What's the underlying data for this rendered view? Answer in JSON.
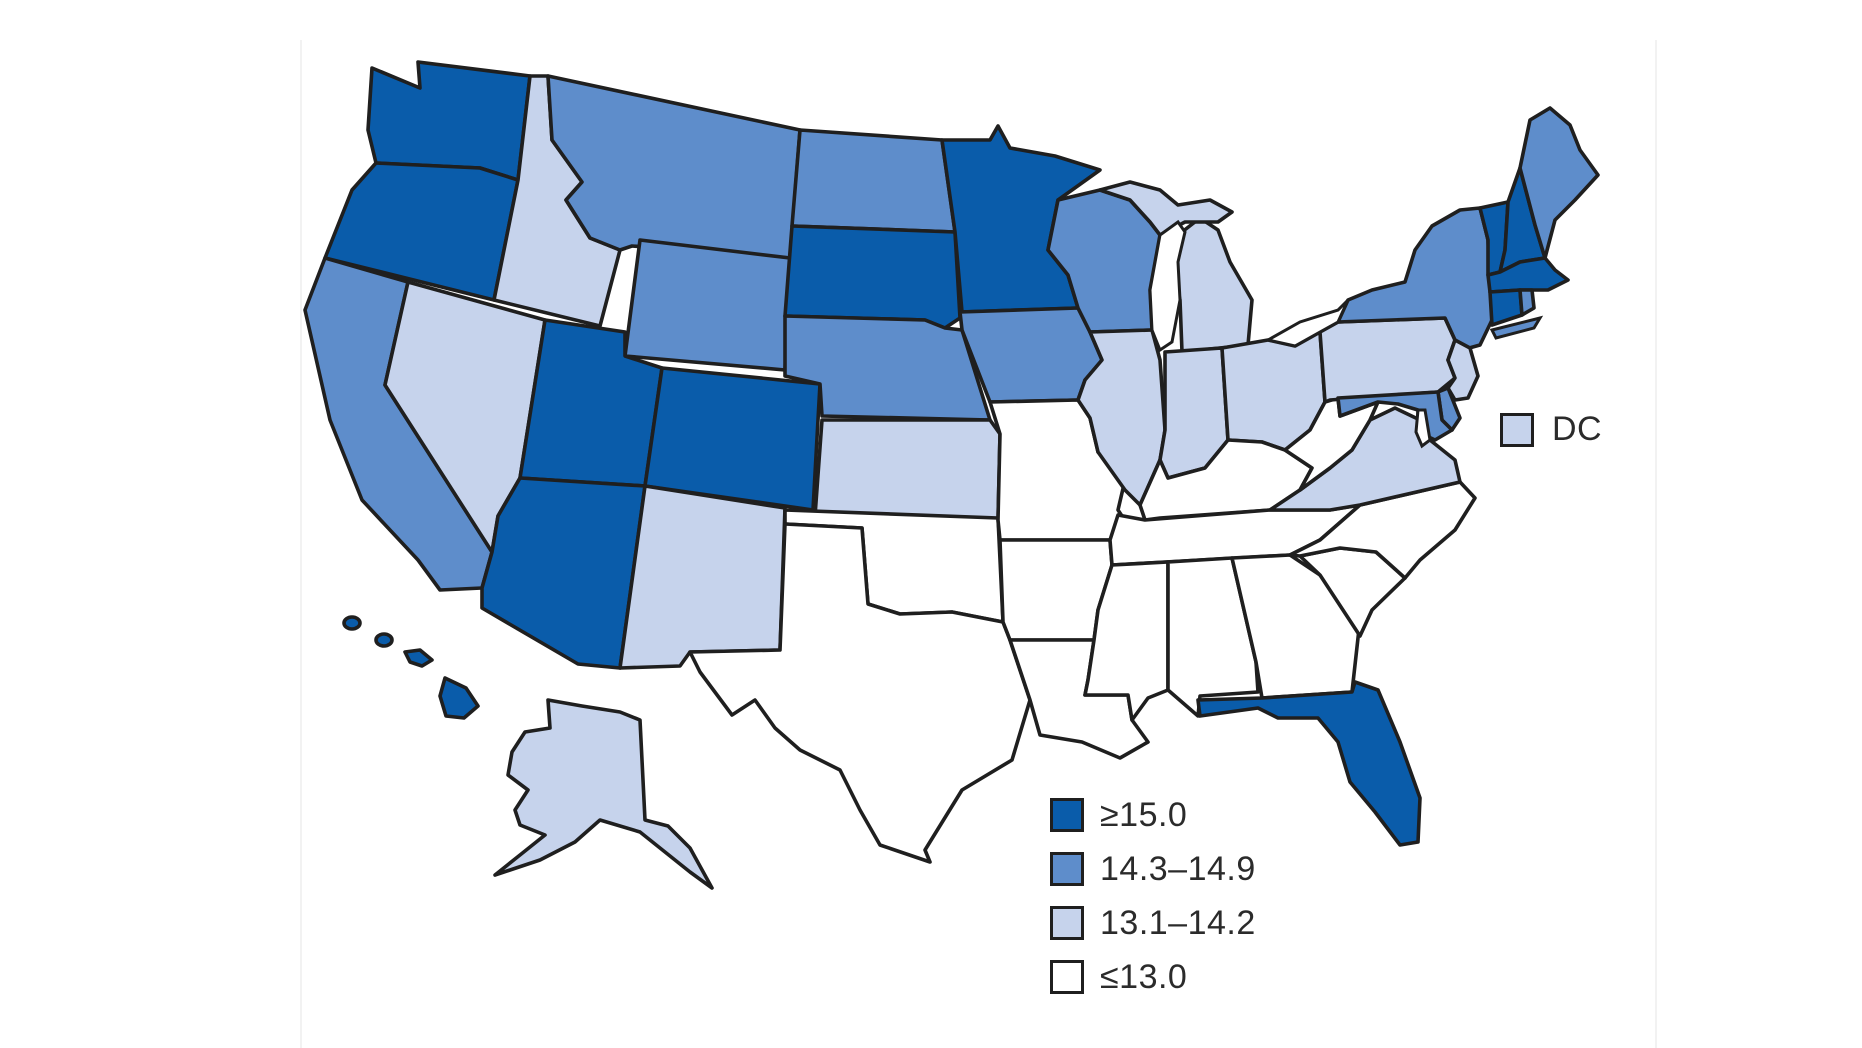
{
  "classes": [
    {
      "key": "c1",
      "label": "≥15.0",
      "color": "#0a5caa"
    },
    {
      "key": "c2",
      "label": "14.3–14.9",
      "color": "#5e8dcb"
    },
    {
      "key": "c3",
      "label": "13.1–14.2",
      "color": "#c6d3ec"
    },
    {
      "key": "c4",
      "label": "≤13.0",
      "color": "#ffffff"
    }
  ],
  "states": {
    "WA": "c1",
    "OR": "c1",
    "CA": "c2",
    "NV": "c3",
    "ID": "c3",
    "MT": "c2",
    "WY": "c2",
    "UT": "c1",
    "AZ": "c1",
    "CO": "c1",
    "NM": "c3",
    "ND": "c2",
    "SD": "c1",
    "NE": "c2",
    "KS": "c3",
    "OK": "c4",
    "TX": "c4",
    "MN": "c1",
    "IA": "c2",
    "MO": "c4",
    "AR": "c4",
    "LA": "c4",
    "WI": "c2",
    "IL": "c3",
    "MI": "c3",
    "IN": "c3",
    "OH": "c3",
    "KY": "c4",
    "TN": "c4",
    "MS": "c4",
    "AL": "c4",
    "GA": "c4",
    "FL": "c1",
    "SC": "c4",
    "NC": "c4",
    "VA": "c3",
    "WV": "c4",
    "PA": "c3",
    "NY": "c2",
    "VT": "c1",
    "NH": "c1",
    "ME": "c2",
    "MA": "c1",
    "CT": "c1",
    "RI": "c2",
    "NJ": "c3",
    "DE": "c2",
    "MD": "c2",
    "AK": "c3",
    "HI": "c1",
    "DC": "c3"
  },
  "dc_label": "DC"
}
